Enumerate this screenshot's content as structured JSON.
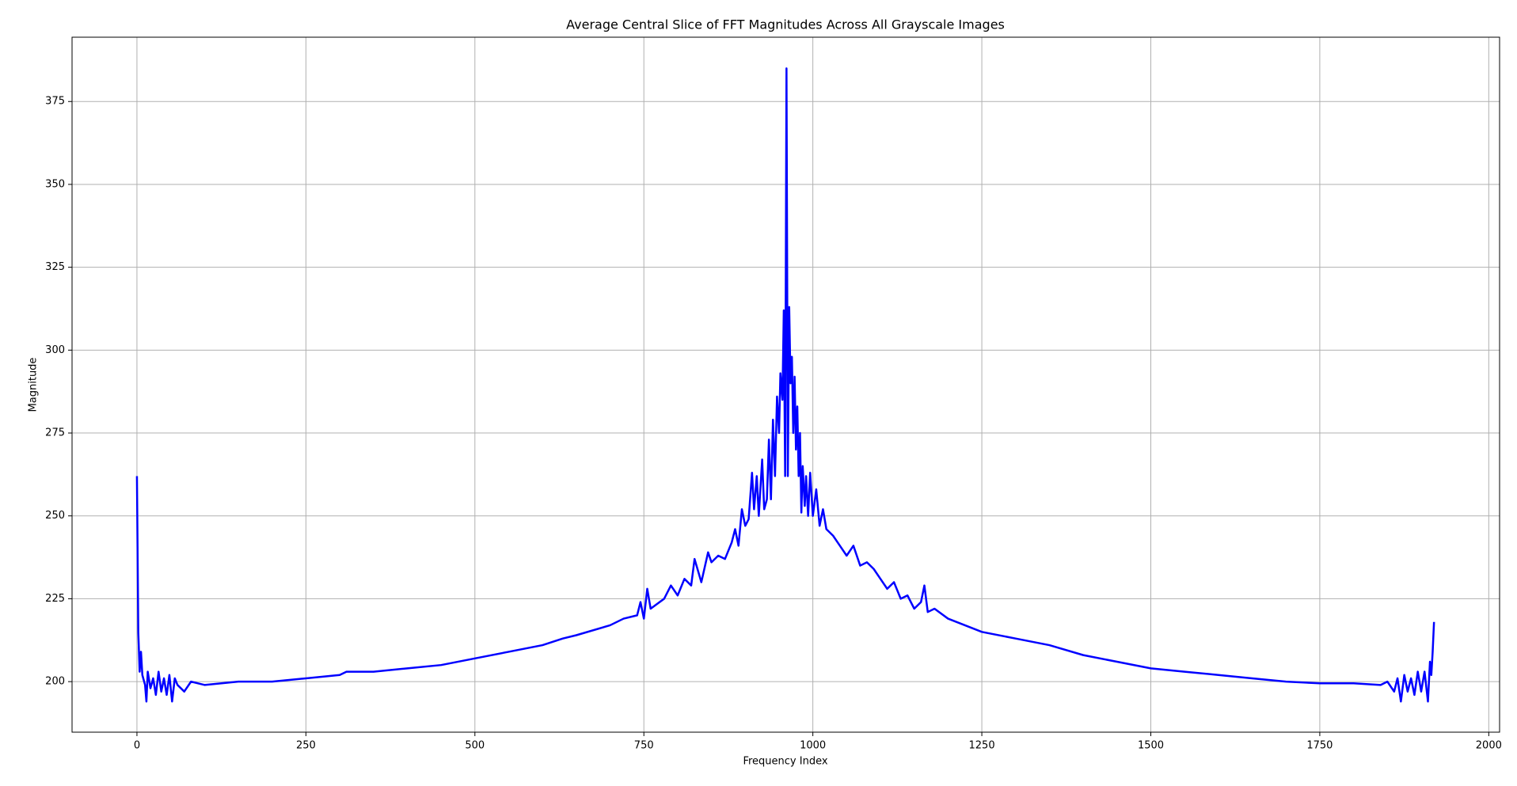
{
  "chart_data": {
    "type": "line",
    "title": "Average Central Slice of FFT Magnitudes Across All Grayscale Images",
    "xlabel": "Frequency Index",
    "ylabel": "Magnitude",
    "color": "#0000ff",
    "grid": true,
    "xlim": [
      -96,
      2016
    ],
    "ylim": [
      184.75,
      394.4
    ],
    "xticks": [
      0,
      250,
      500,
      750,
      1000,
      1250,
      1500,
      1750,
      2000
    ],
    "yticks": [
      200,
      225,
      250,
      275,
      300,
      325,
      350,
      375
    ],
    "x": [
      0,
      2,
      4,
      6,
      8,
      12,
      14,
      16,
      20,
      24,
      28,
      32,
      36,
      40,
      44,
      48,
      52,
      56,
      60,
      70,
      80,
      100,
      150,
      200,
      250,
      300,
      310,
      350,
      400,
      450,
      500,
      550,
      600,
      630,
      650,
      700,
      720,
      740,
      745,
      750,
      755,
      760,
      780,
      790,
      800,
      810,
      820,
      825,
      835,
      845,
      850,
      860,
      870,
      880,
      885,
      890,
      895,
      900,
      905,
      910,
      913,
      917,
      920,
      925,
      928,
      932,
      935,
      938,
      941,
      944,
      947,
      950,
      952,
      955,
      957,
      959,
      961,
      963,
      965,
      967,
      969,
      971,
      973,
      975,
      977,
      979,
      981,
      983,
      985,
      988,
      990,
      993,
      996,
      1000,
      1005,
      1010,
      1015,
      1020,
      1030,
      1040,
      1050,
      1060,
      1070,
      1080,
      1090,
      1100,
      1110,
      1120,
      1130,
      1140,
      1150,
      1160,
      1165,
      1170,
      1180,
      1200,
      1250,
      1300,
      1350,
      1400,
      1450,
      1500,
      1550,
      1600,
      1650,
      1700,
      1750,
      1800,
      1840,
      1850,
      1860,
      1865,
      1870,
      1875,
      1880,
      1885,
      1890,
      1895,
      1900,
      1905,
      1910,
      1913,
      1915,
      1917,
      1919
    ],
    "values": [
      262,
      215,
      203,
      209,
      202,
      199,
      194,
      203,
      198,
      201,
      196,
      203,
      197,
      201,
      196,
      202,
      194,
      201,
      199,
      197,
      200,
      199,
      200,
      200,
      201,
      202,
      203,
      203,
      204,
      205,
      207,
      209,
      211,
      213,
      214,
      217,
      219,
      220,
      224,
      219,
      228,
      222,
      225,
      229,
      226,
      231,
      229,
      237,
      230,
      239,
      236,
      238,
      237,
      242,
      246,
      241,
      252,
      247,
      249,
      263,
      252,
      262,
      250,
      267,
      252,
      255,
      273,
      255,
      279,
      262,
      286,
      275,
      293,
      285,
      312,
      262,
      385,
      262,
      313,
      290,
      298,
      275,
      292,
      270,
      283,
      262,
      275,
      251,
      265,
      253,
      262,
      250,
      263,
      250,
      258,
      247,
      252,
      246,
      244,
      241,
      238,
      241,
      235,
      236,
      234,
      231,
      228,
      230,
      225,
      226,
      222,
      224,
      229,
      221,
      222,
      219,
      215,
      213,
      211,
      208,
      206,
      204,
      203,
      202,
      201,
      200,
      199.5,
      199.5,
      199,
      200,
      197,
      201,
      194,
      202,
      197,
      201,
      196,
      203,
      197,
      203,
      194,
      206,
      202,
      209,
      218
    ]
  }
}
